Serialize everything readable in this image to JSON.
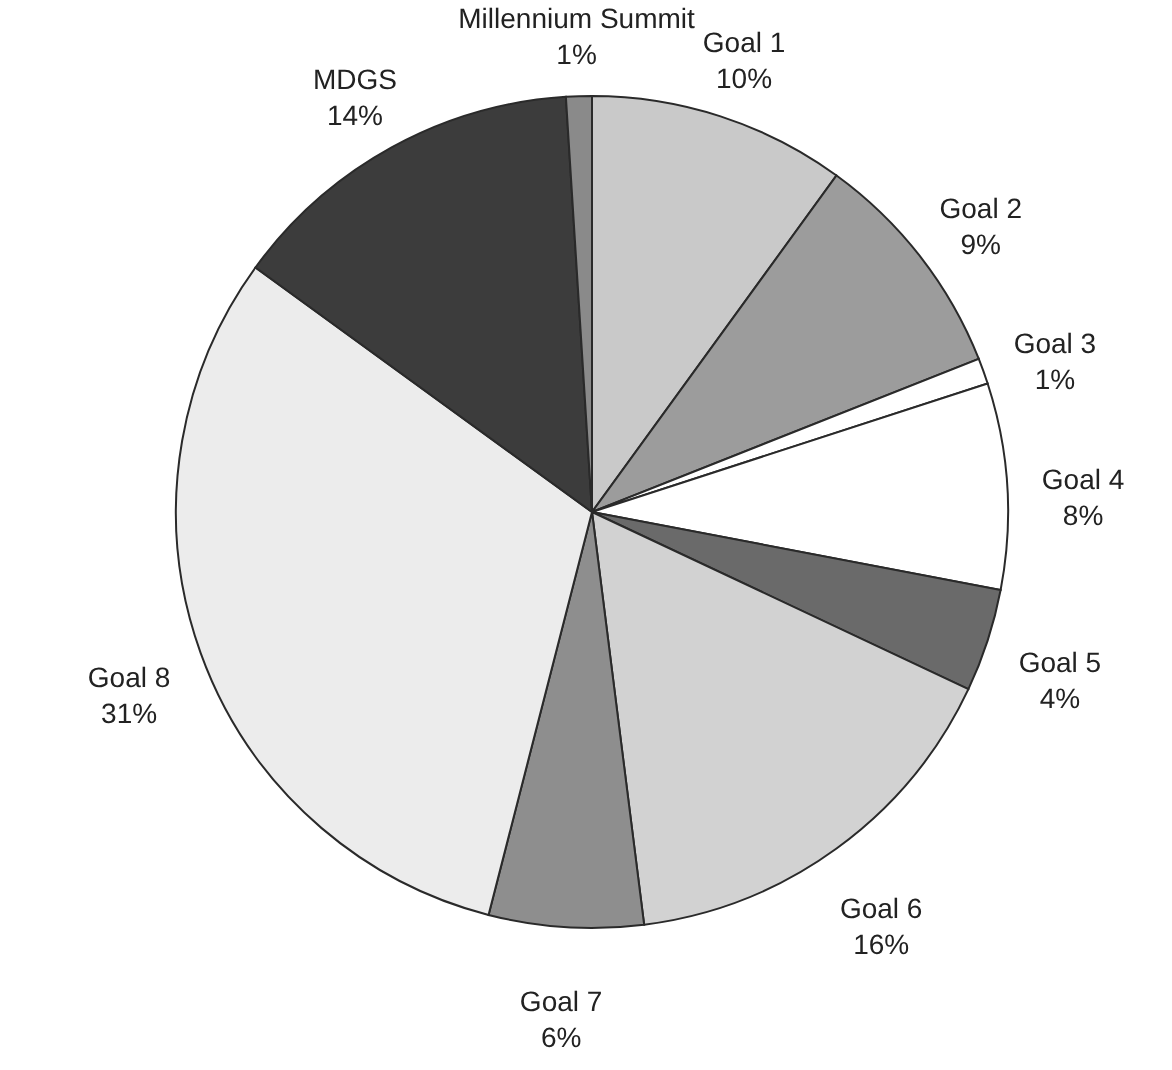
{
  "chart_data": {
    "type": "pie",
    "categories": [
      "Goal 1",
      "Goal 2",
      "Goal 3",
      "Goal 4",
      "Goal 5",
      "Goal 6",
      "Goal 7",
      "Goal 8",
      "MDGS",
      "Millennium Summit"
    ],
    "values": [
      10,
      9,
      1,
      8,
      4,
      16,
      6,
      31,
      14,
      1
    ],
    "value_labels": [
      "10%",
      "9%",
      "1%",
      "8%",
      "4%",
      "16%",
      "6%",
      "31%",
      "14%",
      "1%"
    ],
    "colors": [
      "#c9c9c9",
      "#9c9c9c",
      "#ffffff",
      "#ffffff",
      "#6a6a6a",
      "#d2d2d2",
      "#8e8e8e",
      "#ececec",
      "#3c3c3c",
      "#8a8a8a"
    ]
  }
}
